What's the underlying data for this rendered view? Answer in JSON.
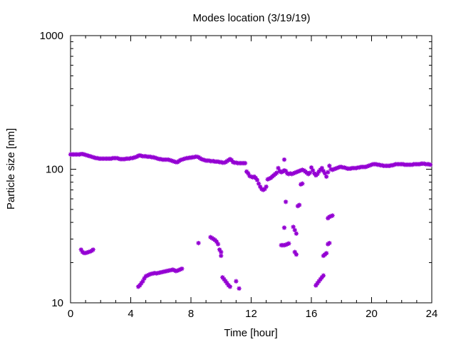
{
  "chart_data": {
    "type": "scatter",
    "title": "Modes location (3/19/19)",
    "xlabel": "Time [hour]",
    "ylabel": "Particle size [nm]",
    "xlim": [
      0,
      24
    ],
    "ylim": [
      10,
      1000
    ],
    "yscale": "log",
    "x_ticks": [
      "0",
      "4",
      "8",
      "12",
      "16",
      "20",
      "24"
    ],
    "y_ticks": [
      "10",
      "100",
      "1000"
    ],
    "grid": false,
    "marker_color": "#9400D3",
    "marker": "asterisk",
    "series": [
      {
        "points": [
          [
            0.0,
            129
          ],
          [
            0.1,
            129
          ],
          [
            0.2,
            129
          ],
          [
            0.3,
            129
          ],
          [
            0.4,
            129
          ],
          [
            0.5,
            129
          ],
          [
            0.6,
            129
          ],
          [
            0.7,
            130
          ],
          [
            0.8,
            130
          ],
          [
            0.9,
            129
          ],
          [
            1.0,
            128
          ],
          [
            1.1,
            127
          ],
          [
            1.2,
            126
          ],
          [
            1.3,
            125
          ],
          [
            1.4,
            124
          ],
          [
            1.5,
            123
          ],
          [
            1.6,
            122
          ],
          [
            1.7,
            121
          ],
          [
            1.8,
            121
          ],
          [
            1.9,
            120
          ],
          [
            2.0,
            120
          ],
          [
            2.1,
            120
          ],
          [
            2.2,
            120
          ],
          [
            2.3,
            120
          ],
          [
            2.4,
            120
          ],
          [
            2.5,
            120
          ],
          [
            2.6,
            120
          ],
          [
            2.7,
            120
          ],
          [
            2.8,
            121
          ],
          [
            2.9,
            121
          ],
          [
            3.0,
            121
          ],
          [
            3.1,
            121
          ],
          [
            3.2,
            120
          ],
          [
            3.3,
            119
          ],
          [
            3.4,
            119
          ],
          [
            3.5,
            119
          ],
          [
            3.6,
            119
          ],
          [
            3.7,
            120
          ],
          [
            3.8,
            120
          ],
          [
            3.9,
            120
          ],
          [
            4.0,
            121
          ],
          [
            4.1,
            121
          ],
          [
            4.2,
            122
          ],
          [
            4.3,
            123
          ],
          [
            4.4,
            124
          ],
          [
            4.5,
            126
          ],
          [
            4.6,
            127
          ],
          [
            4.7,
            126
          ],
          [
            4.8,
            125
          ],
          [
            4.9,
            125
          ],
          [
            5.0,
            125
          ],
          [
            5.1,
            124
          ],
          [
            5.2,
            124
          ],
          [
            5.3,
            124
          ],
          [
            5.4,
            123
          ],
          [
            5.5,
            123
          ],
          [
            5.6,
            122
          ],
          [
            5.7,
            121
          ],
          [
            5.8,
            120
          ],
          [
            5.9,
            119
          ],
          [
            6.0,
            119
          ],
          [
            6.1,
            118
          ],
          [
            6.2,
            118
          ],
          [
            6.3,
            118
          ],
          [
            6.4,
            118
          ],
          [
            6.5,
            118
          ],
          [
            6.6,
            117
          ],
          [
            6.7,
            116
          ],
          [
            6.8,
            115
          ],
          [
            6.9,
            114
          ],
          [
            7.0,
            113
          ],
          [
            7.1,
            113
          ],
          [
            7.2,
            115
          ],
          [
            7.3,
            117
          ],
          [
            7.4,
            118
          ],
          [
            7.5,
            119
          ],
          [
            7.6,
            120
          ],
          [
            7.7,
            121
          ],
          [
            7.8,
            121
          ],
          [
            7.9,
            122
          ],
          [
            8.0,
            122
          ],
          [
            8.1,
            123
          ],
          [
            8.2,
            123
          ],
          [
            8.3,
            124
          ],
          [
            8.4,
            124
          ],
          [
            8.5,
            123
          ],
          [
            8.6,
            121
          ],
          [
            8.7,
            119
          ],
          [
            8.8,
            118
          ],
          [
            8.9,
            117
          ],
          [
            9.0,
            116
          ],
          [
            9.1,
            116
          ],
          [
            9.2,
            116
          ],
          [
            9.3,
            115
          ],
          [
            9.4,
            115
          ],
          [
            9.5,
            115
          ],
          [
            9.6,
            114
          ],
          [
            9.7,
            114
          ],
          [
            9.8,
            114
          ],
          [
            9.9,
            113
          ],
          [
            10.0,
            113
          ],
          [
            10.1,
            112
          ],
          [
            10.2,
            112
          ],
          [
            10.3,
            113
          ],
          [
            10.4,
            115
          ],
          [
            10.5,
            117
          ],
          [
            10.6,
            119
          ],
          [
            10.7,
            117
          ],
          [
            10.8,
            113
          ],
          [
            10.9,
            112
          ],
          [
            11.0,
            112
          ],
          [
            11.1,
            111
          ],
          [
            11.2,
            111
          ],
          [
            11.3,
            111
          ],
          [
            11.4,
            111
          ],
          [
            11.5,
            111
          ],
          [
            11.6,
            111
          ],
          [
            11.7,
            96
          ],
          [
            11.8,
            93
          ],
          [
            11.9,
            89
          ],
          [
            12.0,
            88
          ],
          [
            12.1,
            87
          ],
          [
            12.2,
            88
          ],
          [
            12.3,
            86
          ],
          [
            12.4,
            83
          ],
          [
            12.5,
            78
          ],
          [
            12.6,
            74
          ],
          [
            12.7,
            71
          ],
          [
            12.8,
            70
          ],
          [
            12.9,
            71
          ],
          [
            13.0,
            74
          ],
          [
            13.1,
            84
          ],
          [
            13.2,
            85
          ],
          [
            13.3,
            86
          ],
          [
            13.4,
            88
          ],
          [
            13.5,
            90
          ],
          [
            13.6,
            92
          ],
          [
            13.7,
            94
          ],
          [
            13.8,
            102
          ],
          [
            13.9,
            97
          ],
          [
            14.0,
            95
          ],
          [
            14.1,
            96
          ],
          [
            14.2,
            98
          ],
          [
            14.3,
            97
          ],
          [
            14.4,
            93
          ],
          [
            14.5,
            92
          ],
          [
            14.6,
            93
          ],
          [
            14.7,
            92
          ],
          [
            14.8,
            93
          ],
          [
            14.9,
            94
          ],
          [
            15.0,
            95
          ],
          [
            15.1,
            96
          ],
          [
            15.2,
            97
          ],
          [
            15.3,
            98
          ],
          [
            15.4,
            99
          ],
          [
            15.5,
            98
          ],
          [
            15.6,
            96
          ],
          [
            15.7,
            94
          ],
          [
            15.8,
            92
          ],
          [
            15.9,
            94
          ],
          [
            16.0,
            103
          ],
          [
            16.1,
            98
          ],
          [
            16.2,
            93
          ],
          [
            16.3,
            90
          ],
          [
            16.4,
            92
          ],
          [
            16.5,
            96
          ],
          [
            16.6,
            99
          ],
          [
            16.7,
            102
          ],
          [
            16.8,
            97
          ],
          [
            16.9,
            93
          ],
          [
            17.0,
            88
          ],
          [
            17.1,
            95
          ],
          [
            17.2,
            106
          ],
          [
            17.3,
            100
          ],
          [
            17.4,
            99
          ],
          [
            17.5,
            100
          ],
          [
            17.6,
            101
          ],
          [
            17.7,
            102
          ],
          [
            17.8,
            103
          ],
          [
            17.9,
            104
          ],
          [
            18.0,
            104
          ],
          [
            18.1,
            103
          ],
          [
            18.2,
            103
          ],
          [
            18.3,
            102
          ],
          [
            18.4,
            101
          ],
          [
            18.5,
            101
          ],
          [
            18.6,
            101
          ],
          [
            18.7,
            102
          ],
          [
            18.8,
            102
          ],
          [
            18.9,
            102
          ],
          [
            19.0,
            102
          ],
          [
            19.1,
            103
          ],
          [
            19.2,
            103
          ],
          [
            19.3,
            104
          ],
          [
            19.4,
            104
          ],
          [
            19.5,
            104
          ],
          [
            19.6,
            104
          ],
          [
            19.7,
            105
          ],
          [
            19.8,
            106
          ],
          [
            19.9,
            107
          ],
          [
            20.0,
            108
          ],
          [
            20.1,
            109
          ],
          [
            20.2,
            109
          ],
          [
            20.3,
            109
          ],
          [
            20.4,
            108
          ],
          [
            20.5,
            108
          ],
          [
            20.6,
            107
          ],
          [
            20.7,
            107
          ],
          [
            20.8,
            106
          ],
          [
            20.9,
            106
          ],
          [
            21.0,
            106
          ],
          [
            21.1,
            106
          ],
          [
            21.2,
            106
          ],
          [
            21.3,
            107
          ],
          [
            21.4,
            107
          ],
          [
            21.5,
            108
          ],
          [
            21.6,
            109
          ],
          [
            21.7,
            109
          ],
          [
            21.8,
            109
          ],
          [
            21.9,
            109
          ],
          [
            22.0,
            109
          ],
          [
            22.1,
            109
          ],
          [
            22.2,
            108
          ],
          [
            22.3,
            108
          ],
          [
            22.4,
            108
          ],
          [
            22.5,
            108
          ],
          [
            22.6,
            108
          ],
          [
            22.7,
            108
          ],
          [
            22.8,
            109
          ],
          [
            22.9,
            109
          ],
          [
            23.0,
            109
          ],
          [
            23.1,
            109
          ],
          [
            23.2,
            109
          ],
          [
            23.3,
            110
          ],
          [
            23.4,
            110
          ],
          [
            23.5,
            110
          ],
          [
            23.6,
            109
          ],
          [
            23.7,
            109
          ],
          [
            23.8,
            109
          ],
          [
            23.9,
            108
          ],
          [
            0.7,
            25
          ],
          [
            0.8,
            24
          ],
          [
            0.9,
            23.6
          ],
          [
            1.0,
            23.6
          ],
          [
            1.1,
            23.8
          ],
          [
            1.2,
            24
          ],
          [
            1.3,
            24.2
          ],
          [
            1.4,
            24.5
          ],
          [
            1.5,
            25
          ],
          [
            4.5,
            13.2
          ],
          [
            4.6,
            13.5
          ],
          [
            4.7,
            14
          ],
          [
            4.8,
            14.5
          ],
          [
            4.9,
            15.2
          ],
          [
            5.0,
            15.8
          ],
          [
            5.1,
            16
          ],
          [
            5.2,
            16.2
          ],
          [
            5.3,
            16.4
          ],
          [
            5.4,
            16.5
          ],
          [
            5.5,
            16.6
          ],
          [
            5.6,
            16.7
          ],
          [
            5.7,
            16.6
          ],
          [
            5.8,
            16.7
          ],
          [
            5.9,
            16.8
          ],
          [
            6.0,
            16.9
          ],
          [
            6.1,
            17
          ],
          [
            6.2,
            17.1
          ],
          [
            6.3,
            17.2
          ],
          [
            6.4,
            17.3
          ],
          [
            6.5,
            17.4
          ],
          [
            6.6,
            17.5
          ],
          [
            6.7,
            17.6
          ],
          [
            6.8,
            17.7
          ],
          [
            6.9,
            17.5
          ],
          [
            7.0,
            17.3
          ],
          [
            7.1,
            17.4
          ],
          [
            7.2,
            17.6
          ],
          [
            7.3,
            17.8
          ],
          [
            7.4,
            18
          ],
          [
            8.5,
            28
          ],
          [
            9.3,
            31
          ],
          [
            9.4,
            30.5
          ],
          [
            9.5,
            30
          ],
          [
            9.6,
            29.5
          ],
          [
            9.7,
            28.7
          ],
          [
            9.8,
            27.5
          ],
          [
            9.9,
            25
          ],
          [
            10.0,
            24
          ],
          [
            10.0,
            22.5
          ],
          [
            10.1,
            15.5
          ],
          [
            10.2,
            15
          ],
          [
            10.3,
            14.5
          ],
          [
            10.4,
            14
          ],
          [
            10.5,
            13.5
          ],
          [
            10.6,
            13.2
          ],
          [
            11.0,
            14.5
          ],
          [
            11.2,
            12.8
          ],
          [
            14.0,
            27
          ],
          [
            14.1,
            27
          ],
          [
            14.2,
            27
          ],
          [
            14.3,
            27.2
          ],
          [
            14.4,
            27.5
          ],
          [
            14.5,
            27.8
          ],
          [
            14.2,
            36.5
          ],
          [
            14.3,
            57
          ],
          [
            14.2,
            118
          ],
          [
            14.8,
            37
          ],
          [
            14.9,
            35
          ],
          [
            15.0,
            33
          ],
          [
            14.9,
            24
          ],
          [
            15.0,
            23
          ],
          [
            15.1,
            53
          ],
          [
            15.2,
            54
          ],
          [
            15.3,
            77
          ],
          [
            15.4,
            78
          ],
          [
            16.3,
            13.5
          ],
          [
            16.4,
            14
          ],
          [
            16.5,
            14.5
          ],
          [
            16.6,
            15
          ],
          [
            16.7,
            15.5
          ],
          [
            16.8,
            16
          ],
          [
            16.8,
            22.5
          ],
          [
            16.9,
            23
          ],
          [
            17.0,
            23.5
          ],
          [
            17.1,
            27.5
          ],
          [
            17.2,
            28
          ],
          [
            17.1,
            43
          ],
          [
            17.2,
            44
          ],
          [
            17.3,
            44.5
          ],
          [
            17.4,
            45
          ]
        ]
      }
    ]
  }
}
